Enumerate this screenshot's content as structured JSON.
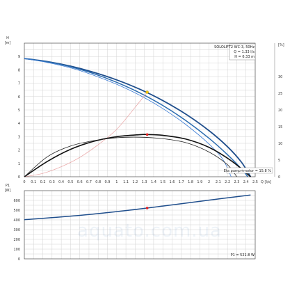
{
  "watermark": "aquato.com.ua",
  "chart_data": [
    {
      "type": "line",
      "title": "SOLOLIFT2 WC-3, 50Hz",
      "ylabel": "H",
      "yunit": "[m]",
      "xlabel": "Q",
      "xunit": "[l/s]",
      "y2unit": "[%]",
      "xlim": [
        0,
        2.5
      ],
      "ylim": [
        0,
        10
      ],
      "y2lim": [
        0,
        40
      ],
      "grid": true,
      "x_ticks": [
        "0",
        "0.1",
        "0.2",
        "0.3",
        "0.4",
        "0.5",
        "0.6",
        "0.7",
        "0.8",
        "0.9",
        "1",
        "1.1",
        "1.2",
        "1.3",
        "1.4",
        "1.5",
        "1.6",
        "1.7",
        "1.8",
        "1.9",
        "2",
        "2.1",
        "2.2",
        "2.3",
        "2.4",
        "2.5"
      ],
      "y_ticks": [
        "0",
        "1",
        "2",
        "3",
        "4",
        "5",
        "6",
        "7",
        "8",
        "9"
      ],
      "y2_ticks": [
        "0",
        "5",
        "10",
        "15",
        "20",
        "25",
        "30"
      ],
      "duty_point": {
        "q": 1.33,
        "h": 6.33,
        "q_label": "Q = 1.33 l/s",
        "h_label": "H = 6.33 m"
      },
      "eta_label": "Eta pump+motor = 15.8 %",
      "series": [
        {
          "role": "head_max",
          "color": "#1f4e8c",
          "x": [
            0,
            0.25,
            0.5,
            0.75,
            1.0,
            1.25,
            1.5,
            1.75,
            2.0,
            2.2,
            2.35,
            2.45
          ],
          "y": [
            8.85,
            8.62,
            8.28,
            7.82,
            7.25,
            6.55,
            5.7,
            4.68,
            3.45,
            2.25,
            1.1,
            0.0
          ]
        },
        {
          "role": "head_system",
          "color": "#2b6cb0",
          "x": [
            0,
            0.25,
            0.5,
            0.75,
            1.0,
            1.25,
            1.5,
            1.75,
            2.0,
            2.2,
            2.35,
            2.42
          ],
          "y": [
            8.85,
            8.6,
            8.23,
            7.72,
            7.07,
            6.28,
            5.33,
            4.2,
            2.88,
            1.65,
            0.6,
            0.0
          ]
        },
        {
          "role": "head_impeller",
          "color": "#3a7bd5",
          "x": [
            0,
            0.25,
            0.5,
            0.75,
            1.0,
            1.25,
            1.5,
            1.75,
            2.0,
            2.15,
            2.24
          ],
          "y": [
            8.85,
            8.55,
            8.15,
            7.6,
            6.92,
            6.1,
            5.1,
            3.9,
            2.45,
            1.3,
            0.0
          ]
        },
        {
          "role": "system_curve",
          "color": "#e8a0a0",
          "x": [
            0,
            0.2,
            0.4,
            0.6,
            0.8,
            1.0,
            1.2,
            1.33
          ],
          "y": [
            0.0,
            0.25,
            0.75,
            1.45,
            2.4,
            3.55,
            5.2,
            6.33
          ]
        },
        {
          "role": "efficiency_max",
          "color": "#111111",
          "x": [
            0,
            0.25,
            0.5,
            0.75,
            1.0,
            1.25,
            1.33,
            1.5,
            1.75,
            2.0,
            2.25,
            2.45
          ],
          "y": [
            0.0,
            1.15,
            2.05,
            2.65,
            3.0,
            3.15,
            3.16,
            3.1,
            2.82,
            2.2,
            1.15,
            0.0
          ]
        },
        {
          "role": "efficiency_alt",
          "color": "#222222",
          "x": [
            0,
            0.25,
            0.5,
            0.75,
            1.0,
            1.25,
            1.5,
            1.75,
            2.0,
            2.2,
            2.3
          ],
          "y": [
            0.0,
            1.5,
            2.3,
            2.7,
            2.92,
            2.96,
            2.85,
            2.55,
            1.85,
            0.9,
            0.0
          ]
        }
      ]
    },
    {
      "type": "line",
      "ylabel": "P1",
      "yunit": "[W]",
      "xlim": [
        0,
        2.5
      ],
      "ylim": [
        0,
        700
      ],
      "grid": true,
      "y_ticks": [
        "0",
        "100",
        "200",
        "300",
        "400",
        "500",
        "600"
      ],
      "duty_point": {
        "q": 1.33,
        "p": 521.8,
        "p_label": "P1 = 521.8 W"
      },
      "series": [
        {
          "role": "power",
          "color": "#1f4e8c",
          "x": [
            0,
            0.5,
            1.0,
            1.5,
            2.0,
            2.45
          ],
          "y": [
            402,
            438,
            485,
            542,
            603,
            655
          ]
        }
      ]
    }
  ]
}
